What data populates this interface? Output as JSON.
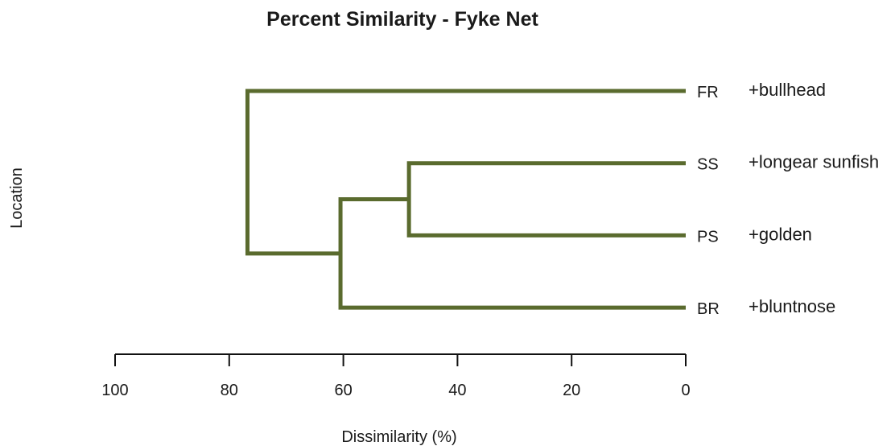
{
  "chart_data": {
    "type": "dendrogram",
    "title": "Percent Similarity - Fyke Net",
    "xlabel": "Dissimilarity (%)",
    "ylabel": "Location",
    "x_axis": {
      "ticks": [
        100,
        80,
        60,
        40,
        20,
        0
      ],
      "tick_labels": [
        "100",
        "80",
        "60",
        "40",
        "20",
        "0"
      ],
      "reversed": true,
      "range": [
        100,
        0
      ]
    },
    "leaves": [
      {
        "id": "FR",
        "label": "FR",
        "annotation": "+bullhead"
      },
      {
        "id": "SS",
        "label": "SS",
        "annotation": "+longear sunfish"
      },
      {
        "id": "PS",
        "label": "PS",
        "annotation": "+golden"
      },
      {
        "id": "BR",
        "label": "BR",
        "annotation": "+bluntnose"
      }
    ],
    "merges": [
      {
        "children": [
          "SS",
          "PS"
        ],
        "height": 48.5
      },
      {
        "children": [
          "SS+PS",
          "BR"
        ],
        "height": 60.5
      },
      {
        "children": [
          "FR",
          "SS+PS+BR"
        ],
        "height": 76.8
      }
    ],
    "grid": false,
    "colors": {
      "branch": "#5a6b2e",
      "axis": "#111111",
      "text": "#1a1a1a"
    }
  }
}
